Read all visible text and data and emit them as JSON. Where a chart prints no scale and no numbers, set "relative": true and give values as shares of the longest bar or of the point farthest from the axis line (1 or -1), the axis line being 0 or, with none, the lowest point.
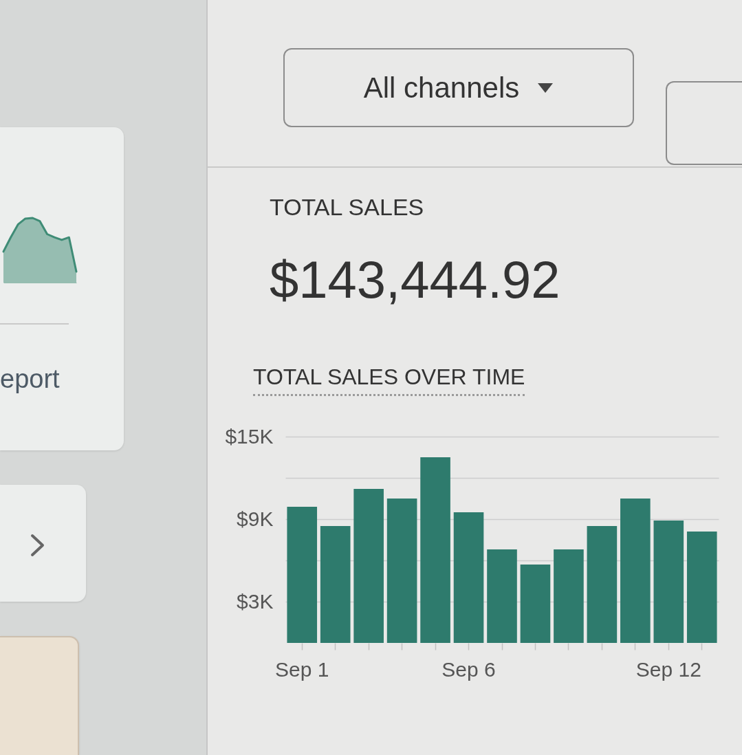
{
  "chart_data": [
    {
      "type": "area",
      "relative": true,
      "categories": [
        null,
        null,
        null,
        null,
        null,
        null,
        null,
        null,
        null,
        null,
        null
      ],
      "values": [
        0.48,
        0.7,
        0.9,
        0.99,
        1,
        0.95,
        0.75,
        0.7,
        0.66,
        0.7,
        0.17
      ],
      "color": "#3f8c76",
      "annotations": [
        "eport"
      ]
    },
    {
      "type": "other",
      "annotations": [
        "All channels"
      ]
    },
    {
      "type": "other",
      "title": "TOTAL SALES",
      "annotations": [
        "$143,444.92"
      ]
    },
    {
      "type": "bar",
      "title": "TOTAL SALES OVER TIME",
      "categories": [
        "Sep 1",
        null,
        null,
        null,
        null,
        "Sep 6",
        null,
        null,
        null,
        null,
        null,
        "Sep 12",
        null
      ],
      "values": [
        9900,
        8500,
        11200,
        10500,
        13500,
        9500,
        6800,
        5700,
        6800,
        8500,
        10500,
        8900,
        8100
      ],
      "color": "#2e7b6d",
      "ylim": [
        0,
        15000
      ],
      "yticks": [
        {
          "value": 3000,
          "label": "$3K"
        },
        {
          "value": 6000,
          "label": null
        },
        {
          "value": 9000,
          "label": "$9K"
        },
        {
          "value": 12000,
          "label": null
        },
        {
          "value": 15000,
          "label": "$15K"
        }
      ],
      "grid": "y"
    }
  ]
}
